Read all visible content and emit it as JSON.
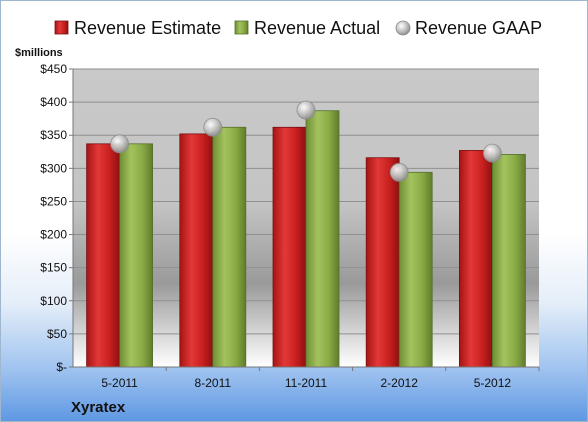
{
  "chart_data": {
    "type": "bar",
    "title": "",
    "company": "Xyratex",
    "ylabel": "$millions",
    "xlabel": "",
    "ylim": [
      0,
      450
    ],
    "ytick_step": 50,
    "ytick_labels": [
      "$-",
      "$50",
      "$100",
      "$150",
      "$200",
      "$250",
      "$300",
      "$350",
      "$400",
      "$450"
    ],
    "grid": true,
    "legend_position": "top",
    "categories": [
      "5-2011",
      "8-2011",
      "11-2011",
      "2-2012",
      "5-2012"
    ],
    "series": [
      {
        "name": "Revenue Estimate",
        "kind": "bar",
        "color": "#d42a2a",
        "values": [
          337,
          352,
          362,
          316,
          327
        ]
      },
      {
        "name": "Revenue Actual",
        "kind": "bar",
        "color": "#8db048",
        "values": [
          337,
          362,
          387,
          294,
          321
        ]
      },
      {
        "name": "Revenue GAAP",
        "kind": "marker",
        "color": "#b8b8b8",
        "values": [
          337,
          362,
          388,
          294,
          323
        ]
      }
    ]
  }
}
